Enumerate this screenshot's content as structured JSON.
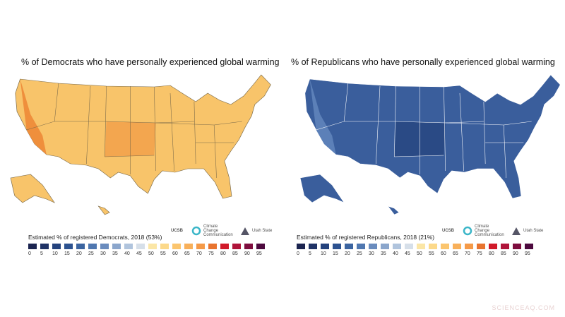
{
  "panels": [
    {
      "title": "% of Democrats who have personally experienced global warming",
      "legend_label": "Estimated % of registered Democrats, 2018 (53%)",
      "fill": "#f8c46a",
      "border": "#7a6a4a",
      "accent": "#f3a64f",
      "coast": "#ef8f3c"
    },
    {
      "title": "% of Republicans who have personally experienced global warming",
      "legend_label": "Estimated % of registered Republicans, 2018 (21%)",
      "fill": "#3a5e9c",
      "border": "#ffffff",
      "accent": "#2a4a85",
      "coast": "#5c80b8"
    }
  ],
  "legend": {
    "ticks": [
      "0",
      "5",
      "10",
      "15",
      "20",
      "25",
      "30",
      "35",
      "40",
      "45",
      "50",
      "55",
      "60",
      "65",
      "70",
      "75",
      "80",
      "85",
      "90",
      "95"
    ],
    "colors": [
      "#1b2450",
      "#1f3366",
      "#24427d",
      "#2c5290",
      "#3b64a0",
      "#4f77b0",
      "#6a8cbe",
      "#8ba6cc",
      "#b0c4dd",
      "#d6dfe9",
      "#fbe6a6",
      "#fcd98a",
      "#fbc56e",
      "#f8b05a",
      "#f59a48",
      "#e8742f",
      "#d11a2a",
      "#b0143a",
      "#7e0d3e",
      "#4d0a3e"
    ]
  },
  "logos": {
    "ucsb": "UCSB",
    "climate": "Climate Change Communication",
    "third": "Utah State"
  },
  "watermark": "SCIENCEAQ.COM"
}
